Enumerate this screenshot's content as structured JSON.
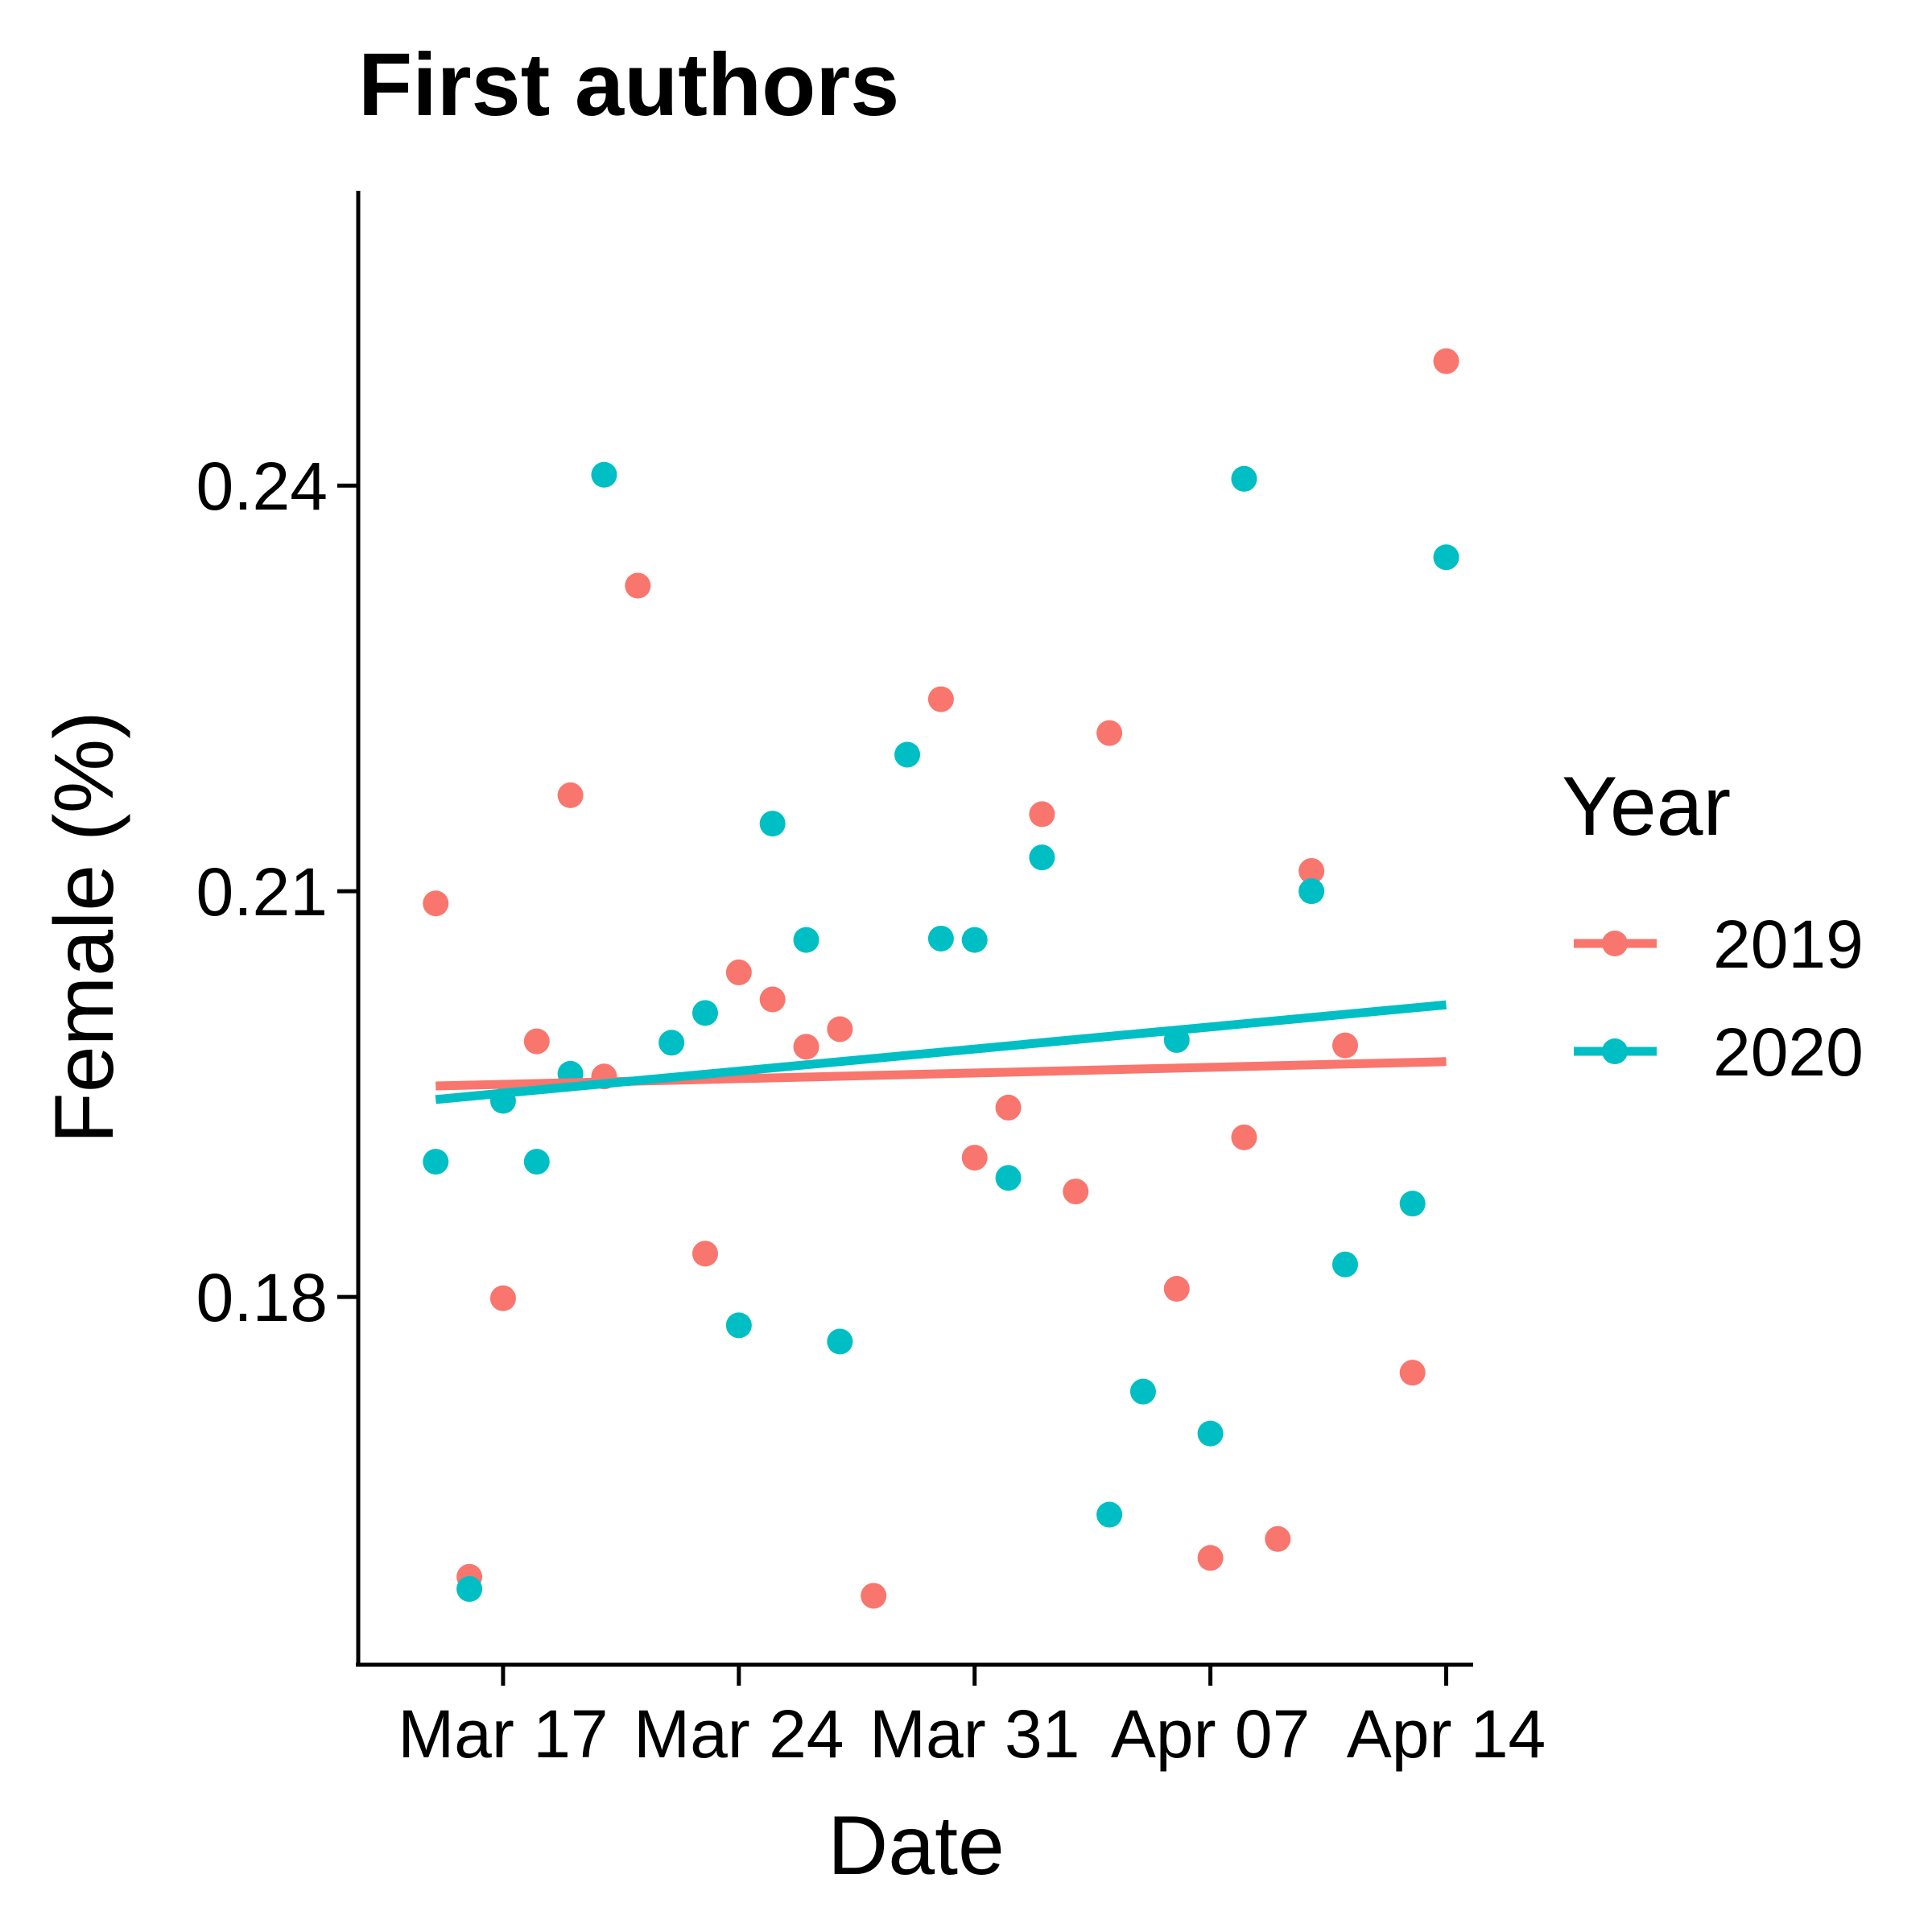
{
  "chart_data": {
    "type": "scatter",
    "title": "First authors",
    "xlabel": "Date",
    "ylabel": "Female (%)",
    "x_unit": "days since Mar 13",
    "xlim": [
      -0.3,
      32.8
    ],
    "ylim": [
      0.1528,
      0.2618
    ],
    "x_ticks": [
      {
        "value": 4,
        "label": "Mar 17"
      },
      {
        "value": 11,
        "label": "Mar 24"
      },
      {
        "value": 18,
        "label": "Mar 31"
      },
      {
        "value": 25,
        "label": "Apr 07"
      },
      {
        "value": 32,
        "label": "Apr 14"
      }
    ],
    "y_ticks": [
      {
        "value": 0.18,
        "label": "0.18"
      },
      {
        "value": 0.21,
        "label": "0.21"
      },
      {
        "value": 0.24,
        "label": "0.24"
      }
    ],
    "grid": false,
    "legend": {
      "title": "Year",
      "position": "right"
    },
    "series": [
      {
        "name": "2019",
        "color": "#F8766D",
        "points": [
          [
            2,
            0.2091
          ],
          [
            3,
            0.1593
          ],
          [
            4,
            0.1799
          ],
          [
            5,
            0.1989
          ],
          [
            6,
            0.2171
          ],
          [
            7,
            0.1963
          ],
          [
            8,
            0.2326
          ],
          [
            10,
            0.1832
          ],
          [
            11,
            0.204
          ],
          [
            12,
            0.202
          ],
          [
            13,
            0.1985
          ],
          [
            14,
            0.1998
          ],
          [
            15,
            0.1579
          ],
          [
            17,
            0.2242
          ],
          [
            18,
            0.1903
          ],
          [
            19,
            0.194
          ],
          [
            20,
            0.2157
          ],
          [
            21,
            0.1878
          ],
          [
            22,
            0.2217
          ],
          [
            24,
            0.1806
          ],
          [
            25,
            0.1607
          ],
          [
            26,
            0.1918
          ],
          [
            27,
            0.1621
          ],
          [
            28,
            0.2115
          ],
          [
            29,
            0.1986
          ],
          [
            31,
            0.1744
          ],
          [
            32,
            0.2492
          ]
        ],
        "trend": {
          "x": [
            2,
            32
          ],
          "y": [
            0.1956,
            0.1974
          ]
        }
      },
      {
        "name": "2020",
        "color": "#00BFC4",
        "points": [
          [
            2,
            0.19
          ],
          [
            3,
            0.1584
          ],
          [
            4,
            0.1945
          ],
          [
            5,
            0.19
          ],
          [
            6,
            0.1965
          ],
          [
            7,
            0.2408
          ],
          [
            9,
            0.1988
          ],
          [
            10,
            0.201
          ],
          [
            11,
            0.1779
          ],
          [
            12,
            0.215
          ],
          [
            13,
            0.2064
          ],
          [
            14,
            0.1767
          ],
          [
            16,
            0.2201
          ],
          [
            17,
            0.2065
          ],
          [
            18,
            0.2064
          ],
          [
            19,
            0.1888
          ],
          [
            20,
            0.2125
          ],
          [
            22,
            0.1639
          ],
          [
            23,
            0.173
          ],
          [
            24,
            0.199
          ],
          [
            25,
            0.1699
          ],
          [
            26,
            0.2405
          ],
          [
            28,
            0.21
          ],
          [
            29,
            0.1824
          ],
          [
            31,
            0.1869
          ],
          [
            32,
            0.2347
          ]
        ],
        "trend": {
          "x": [
            2,
            32
          ],
          "y": [
            0.1946,
            0.2016
          ]
        }
      }
    ]
  }
}
